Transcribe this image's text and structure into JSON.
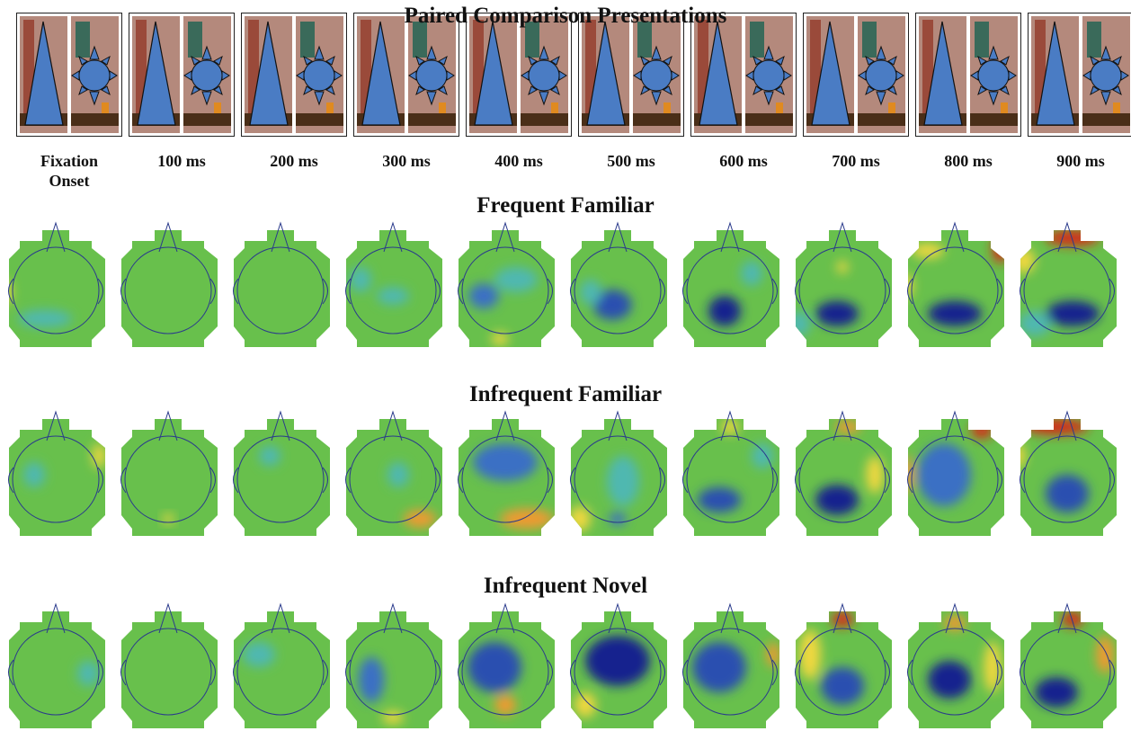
{
  "header": {
    "title": "Paired Comparison Presentations"
  },
  "time_labels": [
    "Fixation Onset",
    "100 ms",
    "200 ms",
    "300 ms",
    "400 ms",
    "500 ms",
    "600 ms",
    "700 ms",
    "800 ms",
    "900 ms"
  ],
  "conditions": [
    {
      "title": "Frequent Familiar"
    },
    {
      "title": "Infrequent Familiar"
    },
    {
      "title": "Infrequent Novel"
    }
  ]
}
